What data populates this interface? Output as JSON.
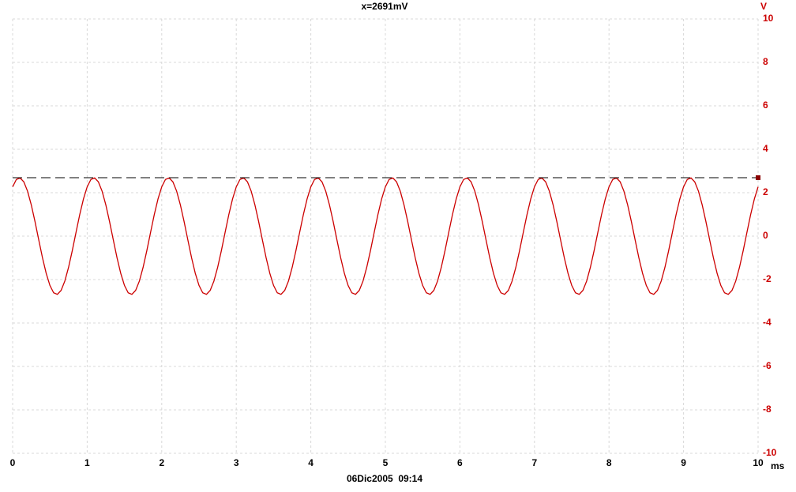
{
  "chart_data": {
    "type": "line",
    "cursor": {
      "value": 2.691,
      "label": "x=2691mV"
    },
    "y_unit": "V",
    "x_unit": "ms",
    "footer": "06Dic2005  09:14",
    "grid": true,
    "xlim": [
      0,
      10
    ],
    "xticks": [
      0,
      1,
      2,
      3,
      4,
      5,
      6,
      7,
      8,
      9,
      10
    ],
    "ylim": [
      -10,
      10
    ],
    "yticks": [
      10,
      8,
      6,
      4,
      2,
      0,
      -2,
      -4,
      -6,
      -8,
      -10
    ],
    "series": [
      {
        "color": "#cc0000",
        "x": [
          0,
          0.05,
          0.1,
          0.15,
          0.2,
          0.25,
          0.3,
          0.35,
          0.4,
          0.45,
          0.5,
          0.55,
          0.6,
          0.65,
          0.7,
          0.75,
          0.8,
          0.85,
          0.9,
          0.95,
          1,
          1.05,
          1.1,
          1.15,
          1.2,
          1.25,
          1.3,
          1.35,
          1.4,
          1.45,
          1.5,
          1.55,
          1.6,
          1.65,
          1.7,
          1.75,
          1.8,
          1.85,
          1.9,
          1.95,
          2,
          2.05,
          2.1,
          2.15,
          2.2,
          2.25,
          2.3,
          2.35,
          2.4,
          2.45,
          2.5,
          2.55,
          2.6,
          2.65,
          2.7,
          2.75,
          2.8,
          2.85,
          2.9,
          2.95,
          3,
          3.05,
          3.1,
          3.15,
          3.2,
          3.25,
          3.3,
          3.35,
          3.4,
          3.45,
          3.5,
          3.55,
          3.6,
          3.65,
          3.7,
          3.75,
          3.8,
          3.85,
          3.9,
          3.95,
          4,
          4.05,
          4.1,
          4.15,
          4.2,
          4.25,
          4.3,
          4.35,
          4.4,
          4.45,
          4.5,
          4.55,
          4.6,
          4.65,
          4.7,
          4.75,
          4.8,
          4.85,
          4.9,
          4.95,
          5,
          5.05,
          5.1,
          5.15,
          5.2,
          5.25,
          5.3,
          5.35,
          5.4,
          5.45,
          5.5,
          5.55,
          5.6,
          5.65,
          5.7,
          5.75,
          5.8,
          5.85,
          5.9,
          5.95,
          6,
          6.05,
          6.1,
          6.15,
          6.2,
          6.25,
          6.3,
          6.35,
          6.4,
          6.45,
          6.5,
          6.55,
          6.6,
          6.65,
          6.7,
          6.75,
          6.8,
          6.85,
          6.9,
          6.95,
          7,
          7.05,
          7.1,
          7.15,
          7.2,
          7.25,
          7.3,
          7.35,
          7.4,
          7.45,
          7.5,
          7.55,
          7.6,
          7.65,
          7.7,
          7.75,
          7.8,
          7.85,
          7.9,
          7.95,
          8,
          8.05,
          8.1,
          8.15,
          8.2,
          8.25,
          8.3,
          8.35,
          8.4,
          8.45,
          8.5,
          8.55,
          8.6,
          8.65,
          8.7,
          8.75,
          8.8,
          8.85,
          8.9,
          8.95,
          9,
          9.05,
          9.1,
          9.15,
          9.2,
          9.25,
          9.3,
          9.35,
          9.4,
          9.45,
          9.5,
          9.55,
          9.6,
          9.65,
          9.7,
          9.75,
          9.8,
          9.85,
          9.9,
          9.95,
          10
        ],
        "values": [
          2.27,
          2.61,
          2.68,
          2.5,
          2.07,
          1.44,
          0.67,
          -0.17,
          -0.99,
          -1.71,
          -2.27,
          -2.61,
          -2.68,
          -2.5,
          -2.07,
          -1.44,
          -0.67,
          0.17,
          0.99,
          1.71,
          2.27,
          2.61,
          2.68,
          2.5,
          2.07,
          1.44,
          0.67,
          -0.17,
          -0.99,
          -1.71,
          -2.27,
          -2.61,
          -2.68,
          -2.5,
          -2.07,
          -1.44,
          -0.67,
          0.17,
          0.99,
          1.71,
          2.27,
          2.61,
          2.68,
          2.5,
          2.07,
          1.44,
          0.67,
          -0.17,
          -0.99,
          -1.71,
          -2.27,
          -2.61,
          -2.68,
          -2.5,
          -2.07,
          -1.44,
          -0.67,
          0.17,
          0.99,
          1.71,
          2.27,
          2.61,
          2.68,
          2.5,
          2.07,
          1.44,
          0.67,
          -0.17,
          -0.99,
          -1.71,
          -2.27,
          -2.61,
          -2.68,
          -2.5,
          -2.07,
          -1.44,
          -0.67,
          0.17,
          0.99,
          1.71,
          2.27,
          2.61,
          2.68,
          2.5,
          2.07,
          1.44,
          0.67,
          -0.17,
          -0.99,
          -1.71,
          -2.27,
          -2.61,
          -2.68,
          -2.5,
          -2.07,
          -1.44,
          -0.67,
          0.17,
          0.99,
          1.71,
          2.27,
          2.61,
          2.68,
          2.5,
          2.07,
          1.44,
          0.67,
          -0.17,
          -0.99,
          -1.71,
          -2.27,
          -2.61,
          -2.68,
          -2.5,
          -2.07,
          -1.44,
          -0.67,
          0.17,
          0.99,
          1.71,
          2.27,
          2.61,
          2.68,
          2.5,
          2.07,
          1.44,
          0.67,
          -0.17,
          -0.99,
          -1.71,
          -2.27,
          -2.61,
          -2.68,
          -2.5,
          -2.07,
          -1.44,
          -0.67,
          0.17,
          0.99,
          1.71,
          2.27,
          2.61,
          2.68,
          2.5,
          2.07,
          1.44,
          0.67,
          -0.17,
          -0.99,
          -1.71,
          -2.27,
          -2.61,
          -2.68,
          -2.5,
          -2.07,
          -1.44,
          -0.67,
          0.17,
          0.99,
          1.71,
          2.27,
          2.61,
          2.68,
          2.5,
          2.07,
          1.44,
          0.67,
          -0.17,
          -0.99,
          -1.71,
          -2.27,
          -2.61,
          -2.68,
          -2.5,
          -2.07,
          -1.44,
          -0.67,
          0.17,
          0.99,
          1.71,
          2.27,
          2.61,
          2.68,
          2.5,
          2.07,
          1.44,
          0.67,
          -0.17,
          -0.99,
          -1.71,
          -2.27,
          -2.61,
          -2.68,
          -2.5,
          -2.07,
          -1.44,
          -0.67,
          0.17,
          0.99,
          1.71,
          2.27
        ]
      }
    ]
  }
}
